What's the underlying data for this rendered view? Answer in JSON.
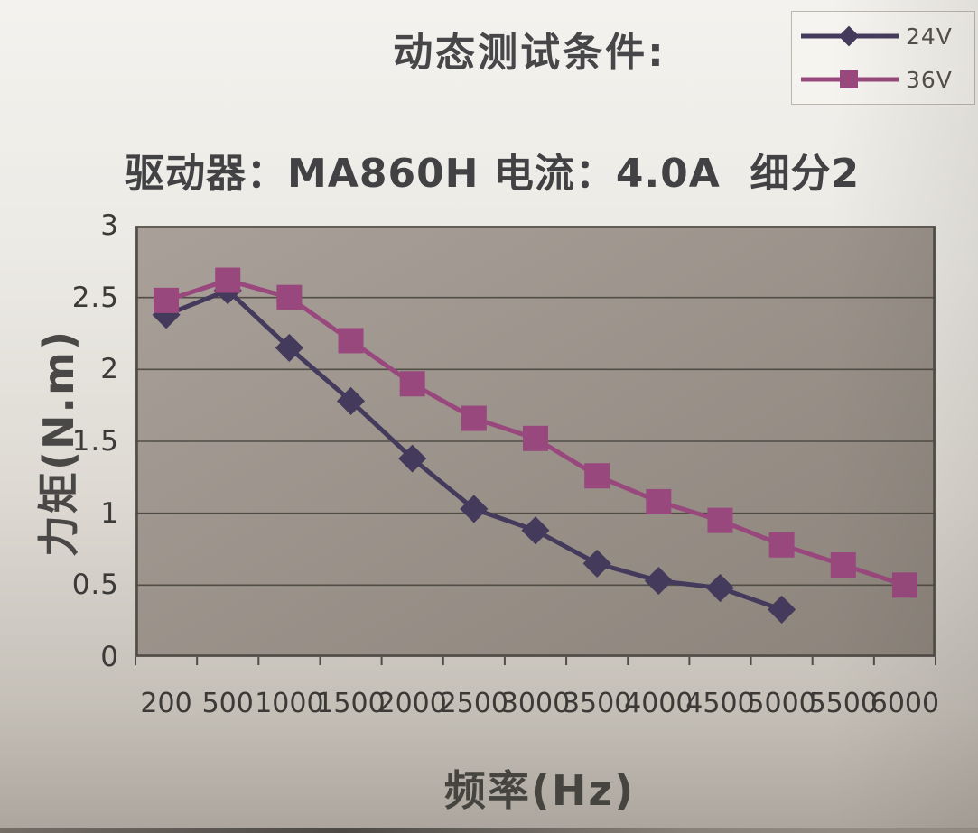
{
  "chart_data": {
    "type": "line",
    "title": "动态测试条件:",
    "subtitle": "驱动器：MA860H 电流：4.0A  细分2",
    "xlabel": "频率(Hz)",
    "ylabel": "力矩(N.m)",
    "categories": [
      200,
      500,
      1000,
      1500,
      2000,
      2500,
      3000,
      3500,
      4000,
      4500,
      5000,
      5500,
      6000
    ],
    "x_tick_labels": [
      "200",
      "500",
      "1000",
      "1500",
      "2000",
      "2500",
      "3000",
      "3500",
      "4000",
      "4500",
      "5000",
      "5500",
      "6000"
    ],
    "y_ticks": [
      0,
      0.5,
      1,
      1.5,
      2,
      2.5,
      3
    ],
    "y_tick_labels": [
      "0",
      "0.5",
      "1",
      "1.5",
      "2",
      "2.5",
      "3"
    ],
    "ylim": [
      0,
      3
    ],
    "grid": "horizontal",
    "legend_position": "top-right",
    "series": [
      {
        "name": "24V",
        "marker": "diamond",
        "color": "#443a5c",
        "values": [
          2.38,
          2.55,
          2.15,
          1.78,
          1.38,
          1.03,
          0.88,
          0.65,
          0.53,
          0.48,
          0.33
        ]
      },
      {
        "name": "36V",
        "marker": "square",
        "color": "#99487d",
        "values": [
          2.48,
          2.62,
          2.5,
          2.2,
          1.9,
          1.66,
          1.52,
          1.26,
          1.08,
          0.95,
          0.78,
          0.64,
          0.5
        ]
      }
    ],
    "colors": {
      "plot_bg_light": "#a9a199",
      "plot_bg_dark": "#8c847b",
      "grid": "#514c46",
      "axis_text": "#3c3a37",
      "title_text": "#47474a"
    }
  }
}
